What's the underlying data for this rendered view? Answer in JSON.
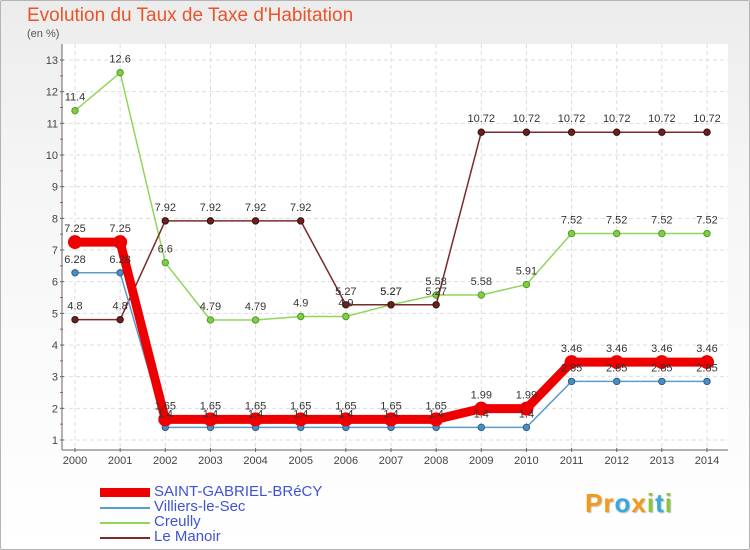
{
  "chart_data": {
    "type": "line",
    "title": "Evolution du Taux de Taxe d'Habitation",
    "subtitle": "(en %)",
    "xlabel": "",
    "ylabel": "",
    "x": [
      "2000",
      "2001",
      "2002",
      "2003",
      "2004",
      "2005",
      "2006",
      "2007",
      "2008",
      "2009",
      "2010",
      "2011",
      "2012",
      "2013",
      "2014"
    ],
    "ylim": [
      1,
      13
    ],
    "yticks": [
      "1",
      "2",
      "3",
      "4",
      "5",
      "6",
      "7",
      "8",
      "9",
      "10",
      "11",
      "12",
      "13"
    ],
    "grid": true,
    "legend": "bottom-left",
    "series": [
      {
        "name": "SAINT-GABRIEL-BRéCY",
        "color": "#ee0000",
        "values": [
          7.25,
          7.25,
          1.65,
          1.65,
          1.65,
          1.65,
          1.65,
          1.65,
          1.65,
          1.99,
          1.99,
          3.46,
          3.46,
          3.46,
          3.46
        ],
        "labels": [
          "7.25",
          "7.25",
          "1.65",
          "1.65",
          "1.65",
          "1.65",
          "1.65",
          "1.65",
          "1.65",
          "1.99",
          "1.99",
          "3.46",
          "3.46",
          "3.46",
          "3.46"
        ]
      },
      {
        "name": "Villiers-le-Sec",
        "color": "#5b9ccd",
        "values": [
          6.28,
          6.28,
          1.4,
          1.4,
          1.4,
          1.4,
          1.4,
          1.4,
          1.4,
          1.4,
          1.4,
          2.85,
          2.85,
          2.85,
          2.85
        ],
        "labels": [
          "6.28",
          "6.28",
          "1.4",
          "1.4",
          "1.4",
          "1.4",
          "1.4",
          "1.4",
          "1.4",
          "1.4",
          "1.4",
          "2.85",
          "2.85",
          "2.85",
          "2.85"
        ]
      },
      {
        "name": "Creully",
        "color": "#8fd65a",
        "values": [
          11.4,
          12.6,
          6.6,
          4.79,
          4.79,
          4.9,
          4.9,
          5.27,
          5.58,
          5.58,
          5.91,
          7.52,
          7.52,
          7.52,
          7.52
        ],
        "labels": [
          "11.4",
          "12.6",
          "6.6",
          "4.79",
          "4.79",
          "4.9",
          "4.9",
          "5.27",
          "5.58",
          "5.58",
          "5.91",
          "7.52",
          "7.52",
          "7.52",
          "7.52"
        ]
      },
      {
        "name": "Le Manoir",
        "color": "#7a2a2a",
        "values": [
          4.8,
          4.8,
          7.92,
          7.92,
          7.92,
          7.92,
          5.27,
          5.27,
          5.27,
          10.72,
          10.72,
          10.72,
          10.72,
          10.72,
          10.72
        ],
        "labels": [
          "4.8",
          "4.8",
          "7.92",
          "7.92",
          "7.92",
          "7.92",
          "5.27",
          "5.27",
          "5.27",
          "10.72",
          "10.72",
          "10.72",
          "10.72",
          "10.72",
          "10.72"
        ]
      }
    ]
  },
  "logo": {
    "letters": [
      "P",
      "r",
      "o",
      "x",
      "i",
      "t",
      "i"
    ],
    "colors": [
      "#f39a1b",
      "#f39a1b",
      "#3aa7df",
      "#f39a1b",
      "#8bc53f",
      "#3aa7df",
      "#8bc53f"
    ]
  }
}
